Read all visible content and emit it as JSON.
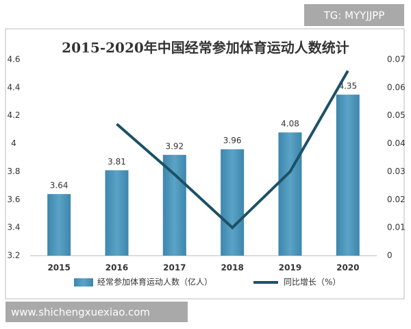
{
  "chart_data": {
    "type": "bar-line",
    "title": "2015-2020年中国经常参加体育运动人数统计",
    "categories": [
      "2015",
      "2016",
      "2017",
      "2018",
      "2019",
      "2020"
    ],
    "series": [
      {
        "name": "经常参加体育运动人数（亿人）",
        "type": "bar",
        "color": "#5ba3c6",
        "values": [
          3.64,
          3.81,
          3.92,
          3.96,
          4.08,
          4.35
        ]
      },
      {
        "name": "同比增长（%）",
        "type": "line",
        "axis": "y2",
        "color": "#1b5166",
        "values": [
          null,
          0.047,
          0.029,
          0.01,
          0.03,
          0.066
        ]
      }
    ],
    "ylim": [
      3.2,
      4.6
    ],
    "yticks": [
      3.2,
      3.4,
      3.6,
      3.8,
      4,
      4.2,
      4.4,
      4.6
    ],
    "y2lim": [
      0,
      0.07
    ],
    "y2ticks": [
      0,
      0.01,
      0.02,
      0.03,
      0.04,
      0.05,
      0.06,
      0.07
    ],
    "grid": false,
    "legend": "bottom"
  },
  "watermarks": {
    "top": "TG: MYYJJPP",
    "bottom": "www.shichengxuexiao.com"
  }
}
